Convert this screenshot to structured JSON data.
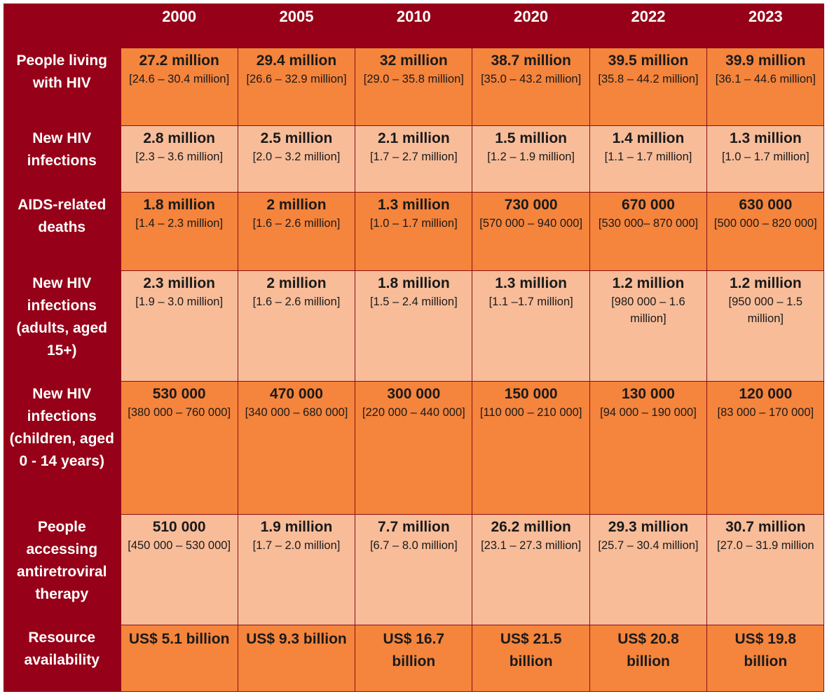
{
  "years": [
    "2000",
    "2005",
    "2010",
    "2020",
    "2022",
    "2023"
  ],
  "rows": [
    {
      "label": "People living with HIV",
      "cells": [
        {
          "main": "27.2 million",
          "range": "[24.6 – 30.4 million]"
        },
        {
          "main": "29.4 million",
          "range": "[26.6 – 32.9 million]"
        },
        {
          "main": "32 million",
          "range": "[29.0 – 35.8 million]"
        },
        {
          "main": "38.7 million",
          "range": "[35.0 – 43.2 million]"
        },
        {
          "main": "39.5 million",
          "range": "[35.8 – 44.2 million]"
        },
        {
          "main": "39.9 million",
          "range": "[36.1 – 44.6 million]"
        }
      ]
    },
    {
      "label": "New HIV infections",
      "cells": [
        {
          "main": "2.8 million",
          "range": "[2.3 – 3.6 million]"
        },
        {
          "main": "2.5 million",
          "range": "[2.0 – 3.2 million]"
        },
        {
          "main": "2.1 million",
          "range": "[1.7 – 2.7 million]"
        },
        {
          "main": "1.5 million",
          "range": "[1.2 – 1.9 million]"
        },
        {
          "main": "1.4 million",
          "range": "[1.1 – 1.7 million]"
        },
        {
          "main": "1.3 million",
          "range": "[1.0 – 1.7 million]"
        }
      ]
    },
    {
      "label": "AIDS-related deaths",
      "cells": [
        {
          "main": "1.8 million",
          "range": "[1.4 – 2.3 million]"
        },
        {
          "main": "2 million",
          "range": "[1.6 – 2.6 million]"
        },
        {
          "main": "1.3 million",
          "range": "[1.0 – 1.7 million]"
        },
        {
          "main": "730 000",
          "range": "[570 000 – 940 000]"
        },
        {
          "main": "670 000",
          "range": "[530 000– 870 000]"
        },
        {
          "main": "630 000",
          "range": "[500 000 – 820 000]"
        }
      ]
    },
    {
      "label": "New HIV infections (adults, aged 15+)",
      "cells": [
        {
          "main": "2.3 million",
          "range": "[1.9 – 3.0 million]"
        },
        {
          "main": "2 million",
          "range": "[1.6 – 2.6 million]"
        },
        {
          "main": "1.8 million",
          "range": "[1.5 – 2.4 million]"
        },
        {
          "main": "1.3 million",
          "range": "[1.1 –1.7 million]"
        },
        {
          "main": "1.2 million",
          "range": "[980 000 – 1.6 million]"
        },
        {
          "main": "1.2 million",
          "range": "[950 000 – 1.5 million]"
        }
      ]
    },
    {
      "label": "New HIV infections (children, aged 0 - 14 years)",
      "cells": [
        {
          "main": "530 000",
          "range": "[380 000 – 760 000]"
        },
        {
          "main": "470 000",
          "range": "[340 000 – 680 000]"
        },
        {
          "main": "300 000",
          "range": "[220 000 – 440 000]"
        },
        {
          "main": "150 000",
          "range": "[110 000 – 210 000]"
        },
        {
          "main": "130 000",
          "range": "[94 000 – 190 000]"
        },
        {
          "main": "120 000",
          "range": "[83 000 – 170 000]"
        }
      ]
    },
    {
      "label": "People accessing antiretroviral therapy",
      "cells": [
        {
          "main": "510 000",
          "range": "[450 000 – 530 000]"
        },
        {
          "main": "1.9 million",
          "range": "[1.7 – 2.0 million]"
        },
        {
          "main": "7.7 million",
          "range": "[6.7 – 8.0 million]"
        },
        {
          "main": "26.2 million",
          "range": "[23.1 – 27.3 million]"
        },
        {
          "main": "29.3 million",
          "range": "[25.7 – 30.4 million]"
        },
        {
          "main": "30.7 million",
          "range": "[27.0 – 31.9 million"
        }
      ]
    },
    {
      "label": "Resource availability",
      "cells": [
        {
          "main": "US$ 5.1 billion",
          "range": ""
        },
        {
          "main": "US$ 9.3 billion",
          "range": ""
        },
        {
          "main": "US$ 16.7 billion",
          "range": ""
        },
        {
          "main": "US$ 21.5 billion",
          "range": ""
        },
        {
          "main": "US$ 20.8 billion",
          "range": ""
        },
        {
          "main": "US$ 19.8 billion",
          "range": ""
        }
      ]
    }
  ],
  "colors": {
    "header_bg": "#960018",
    "dark_cell": "#f5843c",
    "light_cell": "#f8bc99"
  }
}
